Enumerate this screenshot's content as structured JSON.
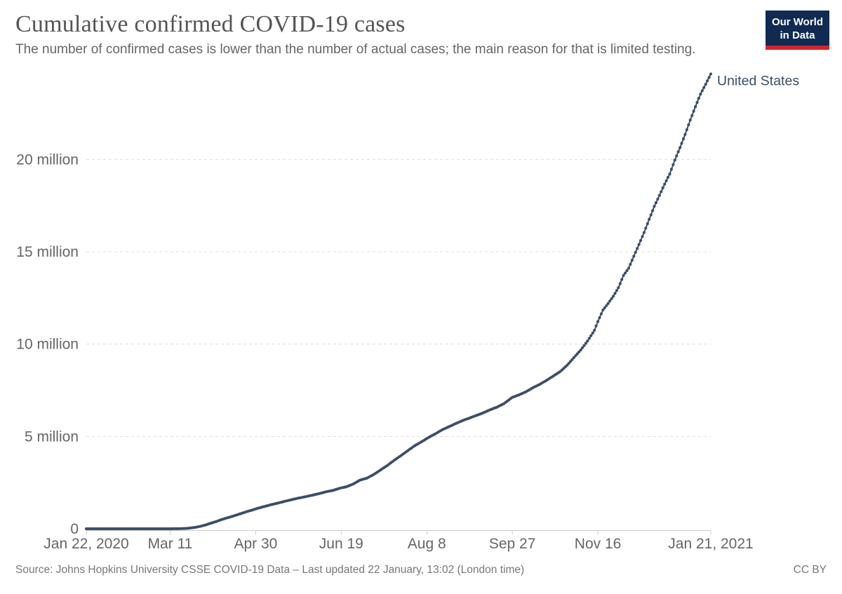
{
  "header": {
    "title": "Cumulative confirmed COVID-19 cases",
    "subtitle": "The number of confirmed cases is lower than the number of actual cases; the main reason for that is limited testing.",
    "logo": {
      "line1": "Our World",
      "line2": "in Data",
      "bg_color": "#102a52",
      "stripe_color": "#d3262d"
    }
  },
  "footer": {
    "source": "Source: Johns Hopkins University CSSE COVID-19 Data – Last updated 22 January, 13:02 (London time)",
    "license": "CC BY"
  },
  "chart_data": {
    "type": "line",
    "title": "Cumulative confirmed COVID-19 cases",
    "series_label": "United States",
    "line_color": "#3C4E66",
    "grid": true,
    "legend_position": "end-of-line",
    "marker": "circle-daily",
    "x_axis": {
      "unit": "days since Jan 22, 2020",
      "range_days": [
        0,
        365
      ],
      "ticks": [
        {
          "day": 0,
          "label": "Jan 22, 2020"
        },
        {
          "day": 49,
          "label": "Mar 11"
        },
        {
          "day": 99,
          "label": "Apr 30"
        },
        {
          "day": 149,
          "label": "Jun 19"
        },
        {
          "day": 199,
          "label": "Aug 8"
        },
        {
          "day": 249,
          "label": "Sep 27"
        },
        {
          "day": 299,
          "label": "Nov 16"
        },
        {
          "day": 365,
          "label": "Jan 21, 2021"
        }
      ]
    },
    "y_axis": {
      "range": [
        0,
        24626036
      ],
      "ticks": [
        {
          "value": 0,
          "label": "0"
        },
        {
          "value": 5000000,
          "label": "5 million"
        },
        {
          "value": 10000000,
          "label": "10 million"
        },
        {
          "value": 15000000,
          "label": "15 million"
        },
        {
          "value": 20000000,
          "label": "20 million"
        }
      ]
    },
    "points_format": "[day_index_from_Jan22_2020, cumulative_confirmed_cases] anchor points (daily values interpolated)",
    "points": [
      [
        0,
        1
      ],
      [
        7,
        8
      ],
      [
        14,
        13
      ],
      [
        21,
        13
      ],
      [
        28,
        15
      ],
      [
        35,
        16
      ],
      [
        39,
        30
      ],
      [
        43,
        99
      ],
      [
        46,
        305
      ],
      [
        49,
        1281
      ],
      [
        52,
        2727
      ],
      [
        55,
        6421
      ],
      [
        58,
        19100
      ],
      [
        61,
        43847
      ],
      [
        64,
        83836
      ],
      [
        67,
        140909
      ],
      [
        70,
        213242
      ],
      [
        73,
        308850
      ],
      [
        76,
        396223
      ],
      [
        79,
        496535
      ],
      [
        82,
        580619
      ],
      [
        85,
        663103
      ],
      [
        88,
        751273
      ],
      [
        91,
        842629
      ],
      [
        94,
        932605
      ],
      [
        97,
        1012583
      ],
      [
        100,
        1103461
      ],
      [
        104,
        1204475
      ],
      [
        108,
        1305544
      ],
      [
        112,
        1390764
      ],
      [
        116,
        1486742
      ],
      [
        120,
        1576542
      ],
      [
        124,
        1662250
      ],
      [
        128,
        1734040
      ],
      [
        132,
        1816820
      ],
      [
        136,
        1902294
      ],
      [
        140,
        2000702
      ],
      [
        144,
        2074526
      ],
      [
        148,
        2191052
      ],
      [
        152,
        2275645
      ],
      [
        156,
        2422299
      ],
      [
        160,
        2636538
      ],
      [
        164,
        2742049
      ],
      [
        168,
        2938624
      ],
      [
        172,
        3184573
      ],
      [
        176,
        3431574
      ],
      [
        180,
        3711464
      ],
      [
        184,
        3970121
      ],
      [
        188,
        4233923
      ],
      [
        192,
        4501263
      ],
      [
        196,
        4713540
      ],
      [
        200,
        4941796
      ],
      [
        204,
        5141207
      ],
      [
        208,
        5361165
      ],
      [
        212,
        5529064
      ],
      [
        216,
        5699478
      ],
      [
        220,
        5863363
      ],
      [
        224,
        5997163
      ],
      [
        228,
        6137086
      ],
      [
        232,
        6276365
      ],
      [
        236,
        6443652
      ],
      [
        240,
        6586371
      ],
      [
        244,
        6769418
      ],
      [
        249,
        7117963
      ],
      [
        253,
        7254175
      ],
      [
        257,
        7420201
      ],
      [
        261,
        7635076
      ],
      [
        265,
        7819800
      ],
      [
        269,
        8036109
      ],
      [
        273,
        8275190
      ],
      [
        277,
        8512629
      ],
      [
        281,
        8852730
      ],
      [
        285,
        9268818
      ],
      [
        289,
        9681437
      ],
      [
        293,
        10170846
      ],
      [
        297,
        10745250
      ],
      [
        299,
        11222920
      ],
      [
        302,
        11846082
      ],
      [
        305,
        12200000
      ],
      [
        308,
        12589918
      ],
      [
        311,
        13052440
      ],
      [
        314,
        13721304
      ],
      [
        317,
        14107816
      ],
      [
        320,
        14757139
      ],
      [
        323,
        15391044
      ],
      [
        326,
        16039393
      ],
      [
        329,
        16760237
      ],
      [
        332,
        17459713
      ],
      [
        335,
        18054076
      ],
      [
        338,
        18658684
      ],
      [
        341,
        19211941
      ],
      [
        344,
        19968087
      ],
      [
        347,
        20636663
      ],
      [
        350,
        21353051
      ],
      [
        353,
        22132045
      ],
      [
        356,
        22856669
      ],
      [
        359,
        23541319
      ],
      [
        362,
        24070000
      ],
      [
        365,
        24626036
      ]
    ]
  },
  "colors": {
    "series_line": "#3C4E66",
    "gridline": "#dddddd",
    "axis": "#cccccc",
    "tick_text": "#666666",
    "title_text": "#555555",
    "footer_text": "#777777"
  }
}
